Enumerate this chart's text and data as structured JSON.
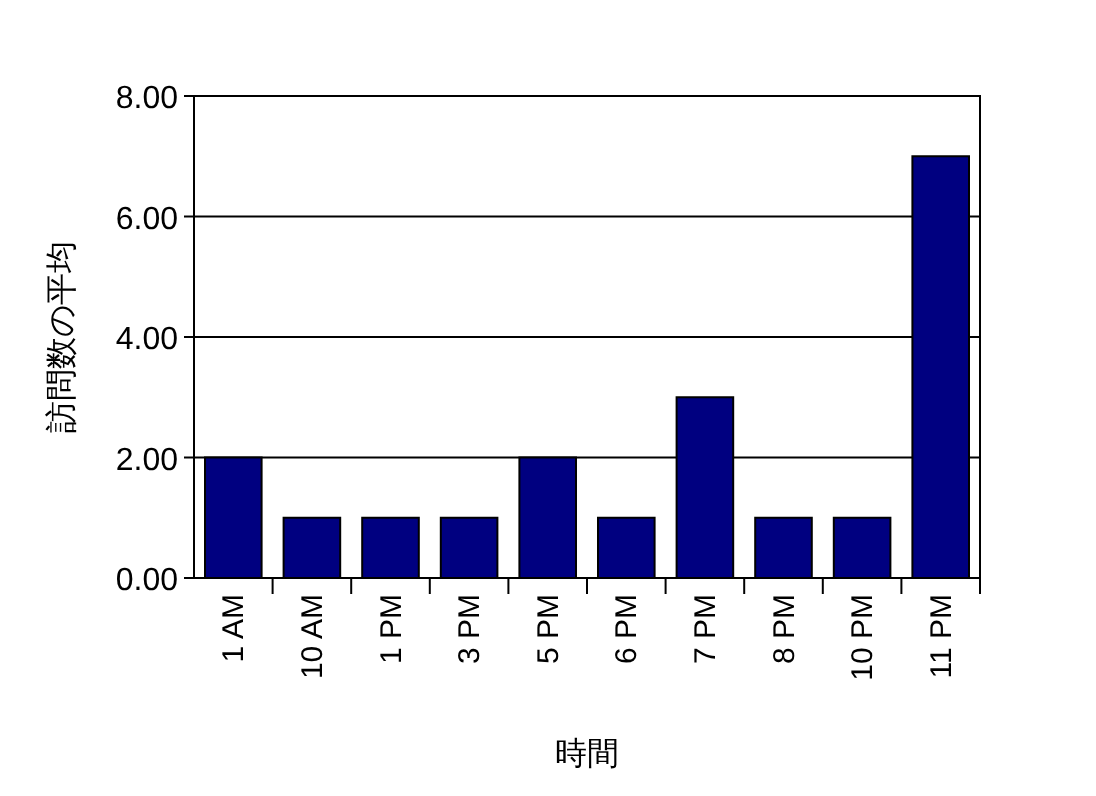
{
  "chart_data": {
    "type": "bar",
    "xlabel": "時間",
    "ylabel": "訪問数の平均",
    "categories": [
      "1 AM",
      "10 AM",
      "1 PM",
      "3 PM",
      "5 PM",
      "6 PM",
      "7 PM",
      "8 PM",
      "10 PM",
      "11 PM"
    ],
    "values": [
      2,
      1,
      1,
      1,
      2,
      1,
      3,
      1,
      1,
      7
    ],
    "color": "#000080",
    "ylim": [
      0,
      8
    ],
    "yticks": [
      {
        "value": 0,
        "label": "0.00"
      },
      {
        "value": 2,
        "label": "2.00"
      },
      {
        "value": 4,
        "label": "4.00"
      },
      {
        "value": 6,
        "label": "6.00"
      },
      {
        "value": 8,
        "label": "8.00"
      }
    ],
    "grid": "y"
  }
}
